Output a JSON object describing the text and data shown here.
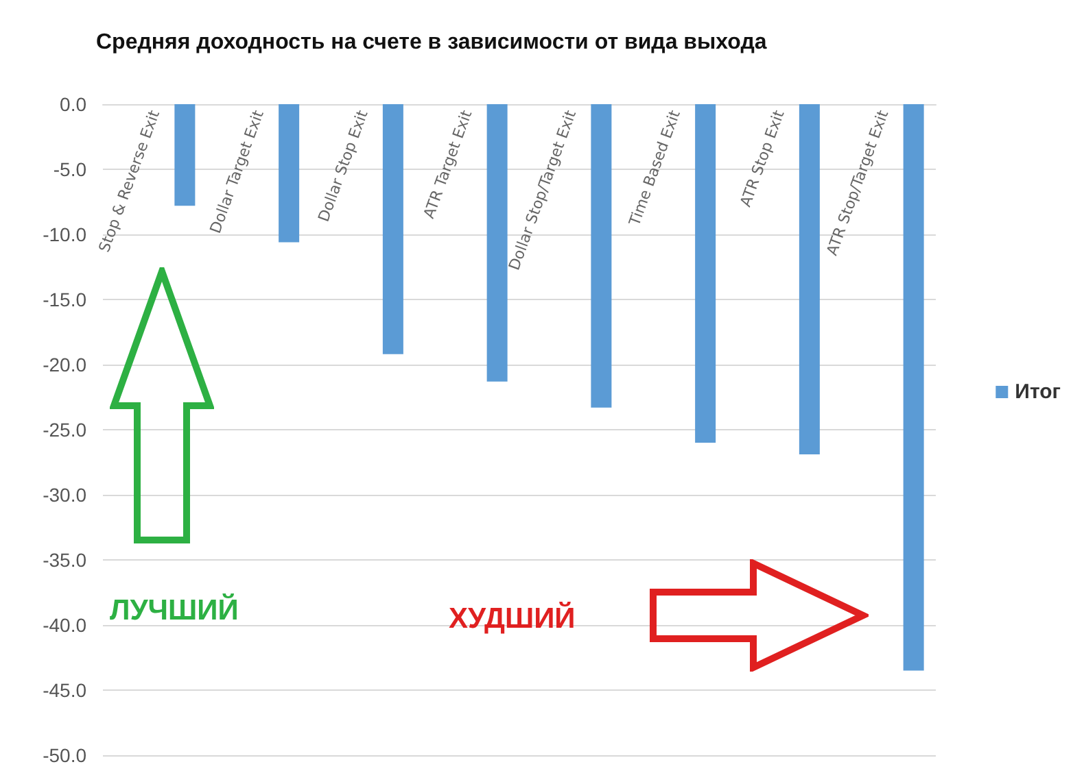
{
  "chart_data": {
    "type": "bar",
    "title": "Средняя доходность на счете в зависимости от вида выхода",
    "categories": [
      "Stop & Reverse Exit",
      "Dollar Target Exit",
      "Dollar Stop Exit",
      "ATR Target Exit",
      "Dollar Stop/Target Exit",
      "Time Based Exit",
      "ATR Stop Exit",
      "ATR Stop/Target Exit"
    ],
    "series": [
      {
        "name": "Итог",
        "color": "#5b9bd5",
        "values": [
          -7.8,
          -10.6,
          -19.2,
          -21.3,
          -23.3,
          -26.0,
          -26.9,
          -43.5
        ]
      }
    ],
    "ylim": [
      -50,
      0
    ],
    "yticks": [
      {
        "value": 0,
        "label": "0.0"
      },
      {
        "value": -5,
        "label": "-5.0"
      },
      {
        "value": -10,
        "label": "-10.0"
      },
      {
        "value": -15,
        "label": "-15.0"
      },
      {
        "value": -20,
        "label": "-20.0"
      },
      {
        "value": -25,
        "label": "-25.0"
      },
      {
        "value": -30,
        "label": "-30.0"
      },
      {
        "value": -35,
        "label": "-35.0"
      },
      {
        "value": -40,
        "label": "-40.0"
      },
      {
        "value": -45,
        "label": "-45.0"
      },
      {
        "value": -50,
        "label": "-50.0"
      }
    ],
    "grid": "y",
    "legend": "right",
    "annotations": [
      "ЛУЧШИЙ",
      "ХУДШИЙ"
    ]
  }
}
